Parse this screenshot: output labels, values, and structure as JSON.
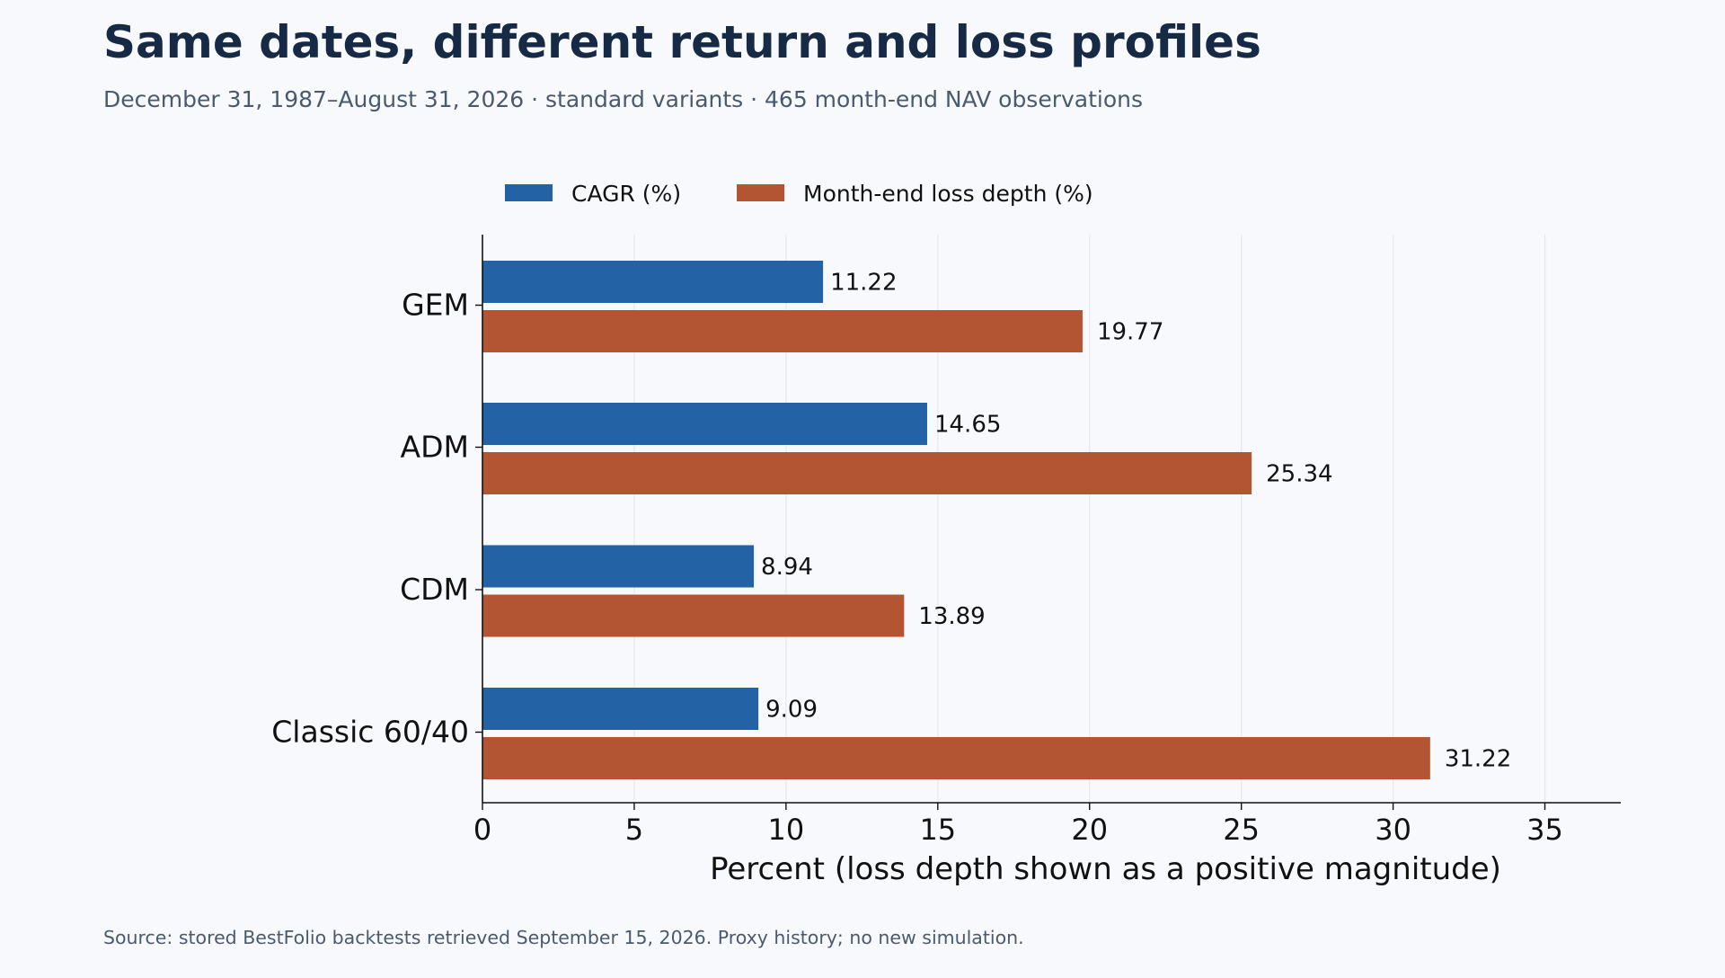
{
  "header": {
    "title": "Same dates, different return and loss profiles",
    "subtitle": "December 31, 1987–August 31, 2026 · standard variants · 465 month-end NAV observations"
  },
  "footer": {
    "source": "Source: stored BestFolio backtests retrieved September 15, 2026. Proxy history; no new simulation."
  },
  "chart_data": {
    "type": "bar",
    "orientation": "horizontal",
    "categories": [
      "GEM",
      "ADM",
      "CDM",
      "Classic 60/40"
    ],
    "series": [
      {
        "name": "CAGR (%)",
        "values": [
          11.22,
          14.65,
          8.94,
          9.09
        ],
        "color": "#2363a5"
      },
      {
        "name": "Month-end loss depth (%)",
        "values": [
          19.77,
          25.34,
          13.89,
          31.22
        ],
        "color": "#b35432"
      }
    ],
    "xlabel": "Percent (loss depth shown as a positive magnitude)",
    "ylabel": "",
    "xlim": [
      0,
      37.5
    ],
    "xticks": [
      0,
      5,
      10,
      15,
      20,
      25,
      30,
      35
    ],
    "grid": "vertical",
    "legend": "top-center"
  }
}
